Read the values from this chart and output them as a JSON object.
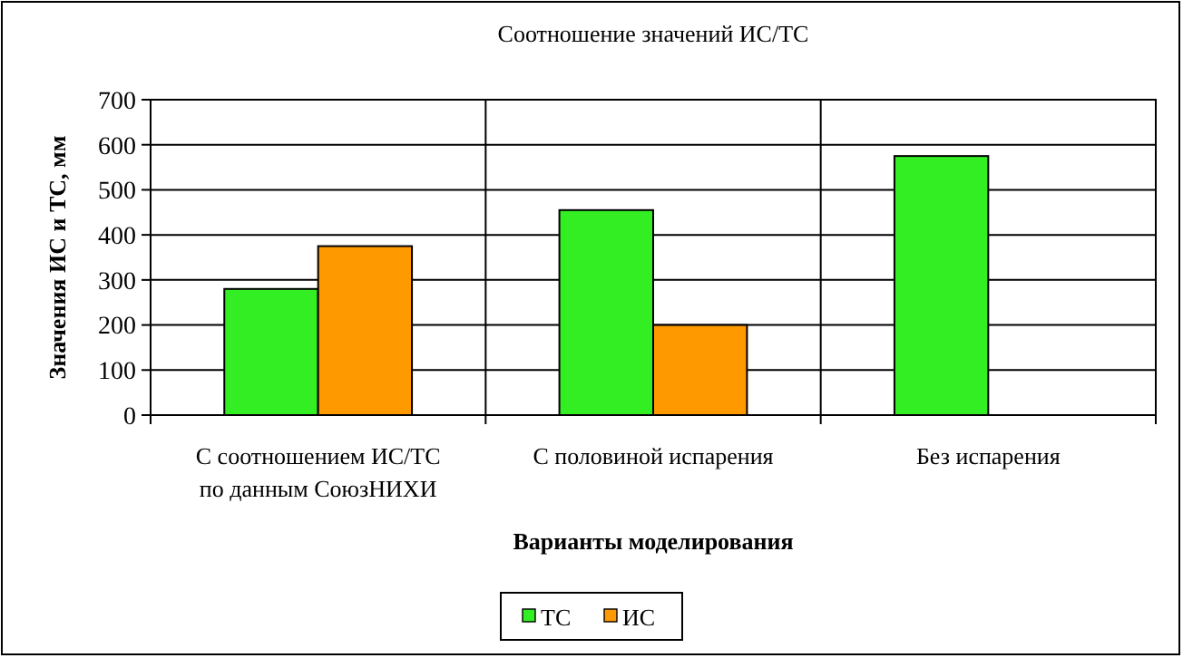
{
  "chart_data": {
    "type": "bar",
    "title": "Соотношение значений ИС/ТС",
    "xlabel": "Варианты моделирования",
    "ylabel": "Значения  ИС и ТС, мм",
    "categories": [
      "С соотношением ИС/ТС\nпо данным СоюзНИХИ",
      "С половиной испарения",
      "Без  испарения"
    ],
    "series": [
      {
        "name": "ТС",
        "color": "#33ee22",
        "values": [
          280,
          455,
          575
        ]
      },
      {
        "name": "ИС",
        "color": "#ff9900",
        "values": [
          375,
          200,
          null
        ]
      }
    ],
    "ylim": [
      0,
      700
    ],
    "yticks": [
      0,
      100,
      200,
      300,
      400,
      500,
      600,
      700
    ],
    "grid": true,
    "legend": "bottom"
  }
}
